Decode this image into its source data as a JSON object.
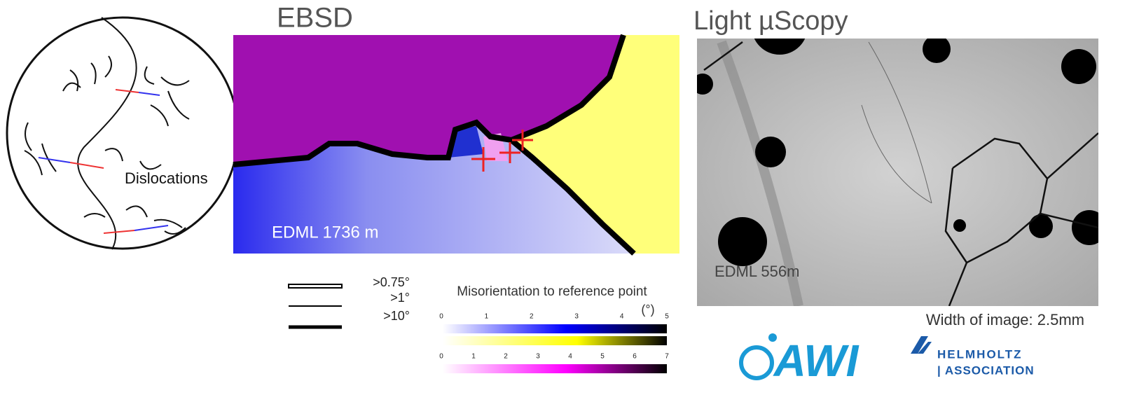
{
  "diagram": {
    "label": "Dislocations"
  },
  "ebsd": {
    "title": "EBSD",
    "caption": "EDML 1736 m"
  },
  "legend": {
    "items": [
      ">0.75°",
      ">1°",
      ">10°"
    ]
  },
  "colorbar": {
    "title": "Misorientation to reference point",
    "unit": "(°)",
    "ticks_top": [
      0,
      1,
      2,
      3,
      4,
      5
    ],
    "ticks_bottom": [
      0,
      1,
      2,
      3,
      4,
      5,
      6,
      7
    ]
  },
  "microscopy": {
    "title": "Light  µScopy",
    "caption": "EDML 556m",
    "width_note": "Width of image: 2.5mm"
  },
  "logos": {
    "awi": "AWI",
    "helmholtz": "HELMHOLTZ",
    "association": "| ASSOCIATION"
  }
}
